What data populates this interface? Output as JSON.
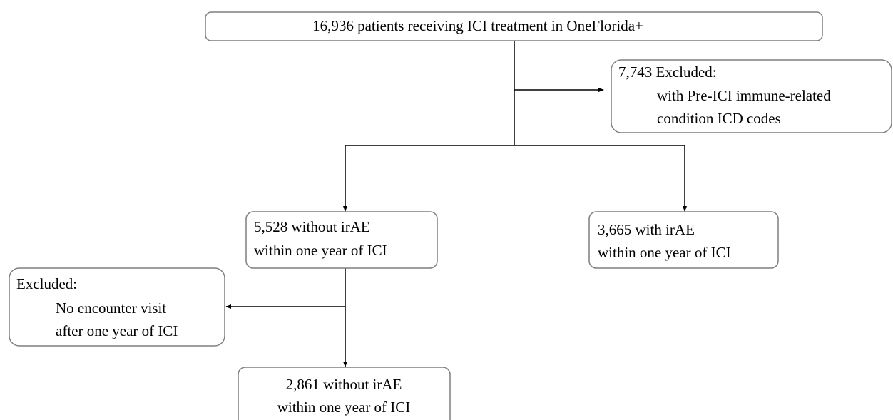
{
  "nodes": [
    {
      "lines": [
        "16,936 patients receiving ICI treatment in OneFlorida+"
      ]
    },
    {
      "lines": [
        "7,743 Excluded:",
        "with Pre-ICI immune-related",
        "condition ICD codes"
      ]
    },
    {
      "lines": [
        "5,528 without irAE",
        "within one year of ICI"
      ]
    },
    {
      "lines": [
        "3,665 with irAE",
        "within one year of ICI"
      ]
    },
    {
      "lines": [
        "Excluded:",
        "No encounter visit",
        "after one year of ICI"
      ]
    },
    {
      "lines": [
        "2,861 without irAE",
        "within one year of ICI"
      ]
    }
  ]
}
